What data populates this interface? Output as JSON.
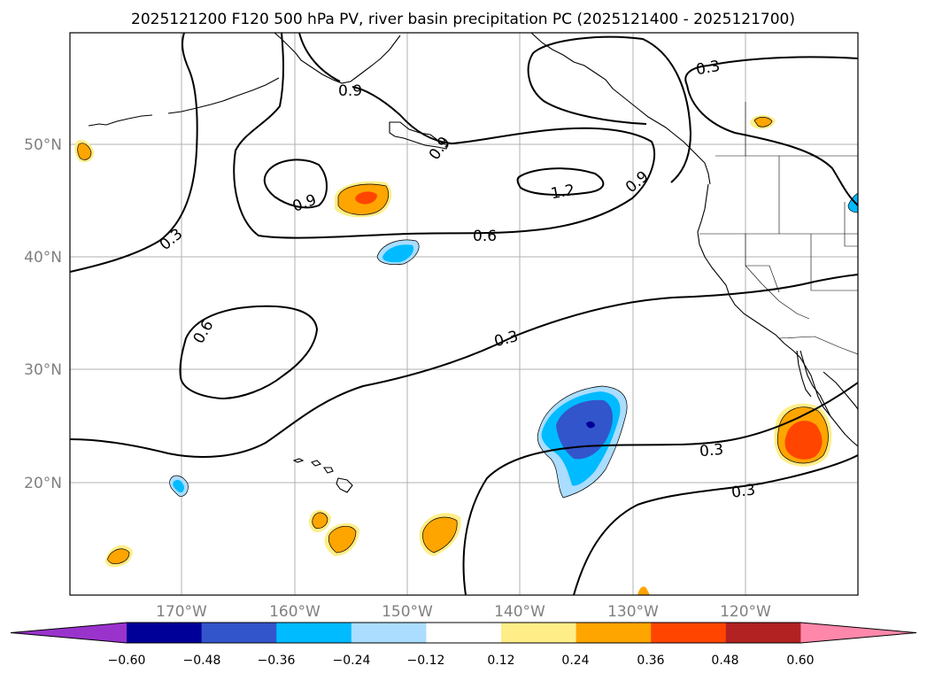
{
  "title": "2025121200 F120 500 hPa PV, river basin precipitation PC (2025121400 - 2025121700)",
  "lat_labels": [
    "50°N",
    "40°N",
    "30°N",
    "20°N"
  ],
  "lon_labels": [
    "170°W",
    "160°W",
    "150°W",
    "140°W",
    "130°W",
    "120°W"
  ],
  "contour_labels": [
    {
      "id": "0.9-a",
      "text": "0.9"
    },
    {
      "id": "0.9-b",
      "text": "0.9"
    },
    {
      "id": "0.9-c",
      "text": "0.9"
    },
    {
      "id": "0.9-d",
      "text": "0.9"
    },
    {
      "id": "1.2",
      "text": "1.2"
    },
    {
      "id": "0.6-a",
      "text": "0.6"
    },
    {
      "id": "0.6-b",
      "text": "0.6"
    },
    {
      "id": "0.3-a",
      "text": "0.3"
    },
    {
      "id": "0.3-b",
      "text": "0.3"
    },
    {
      "id": "0.3-c",
      "text": "0.3"
    },
    {
      "id": "0.3-d",
      "text": "0.3"
    },
    {
      "id": "0.3-e",
      "text": "0.3"
    }
  ],
  "colorbar": {
    "ticks": [
      "−0.60",
      "−0.48",
      "−0.36",
      "−0.24",
      "−0.12",
      "0.12",
      "0.24",
      "0.36",
      "0.48",
      "0.60"
    ],
    "colors": [
      "#9933cc",
      "#000099",
      "#3355cc",
      "#00bbff",
      "#aaddff",
      "#ffffff",
      "#ffee88",
      "#ffa500",
      "#ff4500",
      "#b22222",
      "#ff88aa"
    ]
  },
  "fill_colors": {
    "pos1": "#ffee88",
    "pos2": "#ffa500",
    "pos3": "#ff4500",
    "neg1": "#aaddff",
    "neg2": "#00bbff",
    "neg3": "#3355cc",
    "neg4": "#000099"
  }
}
